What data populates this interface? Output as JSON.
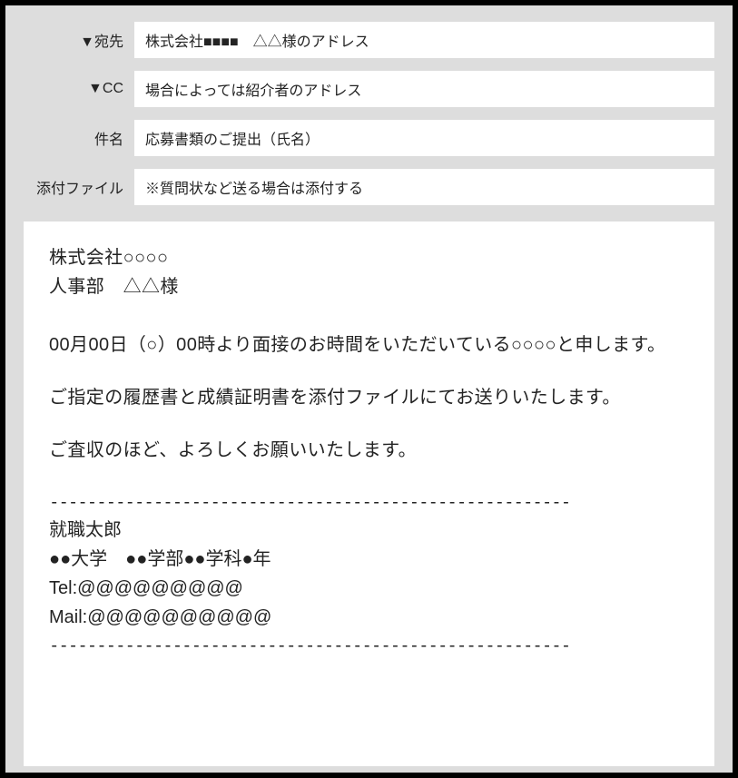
{
  "header": {
    "to": {
      "label": "▼宛先",
      "value": "株式会社■■■■　△△様のアドレス"
    },
    "cc": {
      "label": "▼CC",
      "value": "場合によっては紹介者のアドレス"
    },
    "subject": {
      "label": "件名",
      "value": "応募書類のご提出（氏名）"
    },
    "attachment": {
      "label": "添付ファイル",
      "value": "※質問状など送る場合は添付する"
    }
  },
  "body": {
    "recipient_company": "株式会社○○○○",
    "recipient_person": "人事部　△△様",
    "intro_line1": "00月00日（○）00時より面接のお時間をいただいている○○○○と申します。",
    "content_line1": "ご指定の履歴書と成績証明書を添付ファイルにてお送りいたします。",
    "closing_line": "ご査収のほど、よろしくお願いいたします。",
    "dashes": "-------------------------------------------------------",
    "sig_name": "就職太郎",
    "sig_school": "●●大学　●●学部●●学科●年",
    "sig_tel": "Tel:@@@@@@@@@",
    "sig_mail": "Mail:@@@@@@@@@@"
  },
  "colors": {
    "frame_border": "#000000",
    "inner_bg": "#dddddd",
    "white": "#ffffff",
    "text": "#232323"
  }
}
